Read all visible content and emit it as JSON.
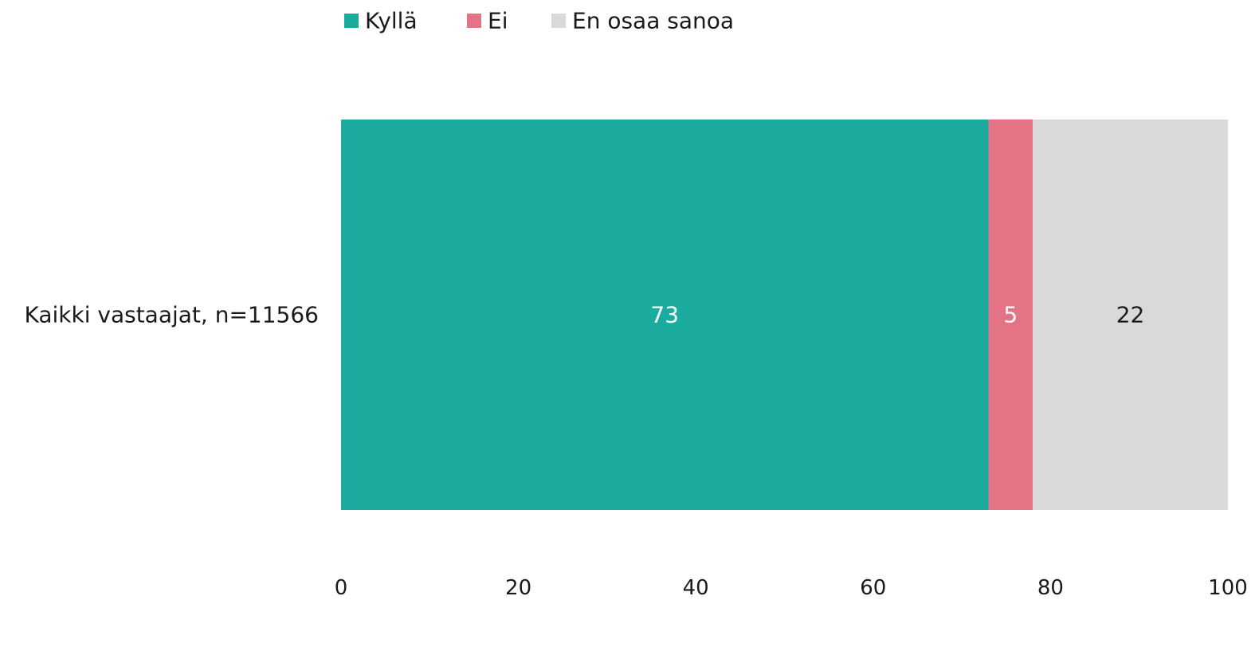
{
  "chart_data": {
    "type": "bar",
    "orientation": "horizontal",
    "stacked": true,
    "title": "",
    "xlabel": "",
    "ylabel": "",
    "categories": [
      "Kaikki vastaajat, n=11566"
    ],
    "series": [
      {
        "name": "Kyllä",
        "values": [
          73
        ],
        "color": "#1BAC9F",
        "label_color": "#ffffff"
      },
      {
        "name": "Ei",
        "values": [
          5
        ],
        "color": "#E37385",
        "label_color": "#ffffff"
      },
      {
        "name": "En osaa sanoa",
        "values": [
          22
        ],
        "color": "#D9D9D9",
        "label_color": "#1a1a1a"
      }
    ],
    "xlim": [
      0,
      100
    ],
    "xticks": [
      "0",
      "20",
      "40",
      "60",
      "80",
      "100"
    ],
    "grid": false,
    "legend_position": "top"
  }
}
